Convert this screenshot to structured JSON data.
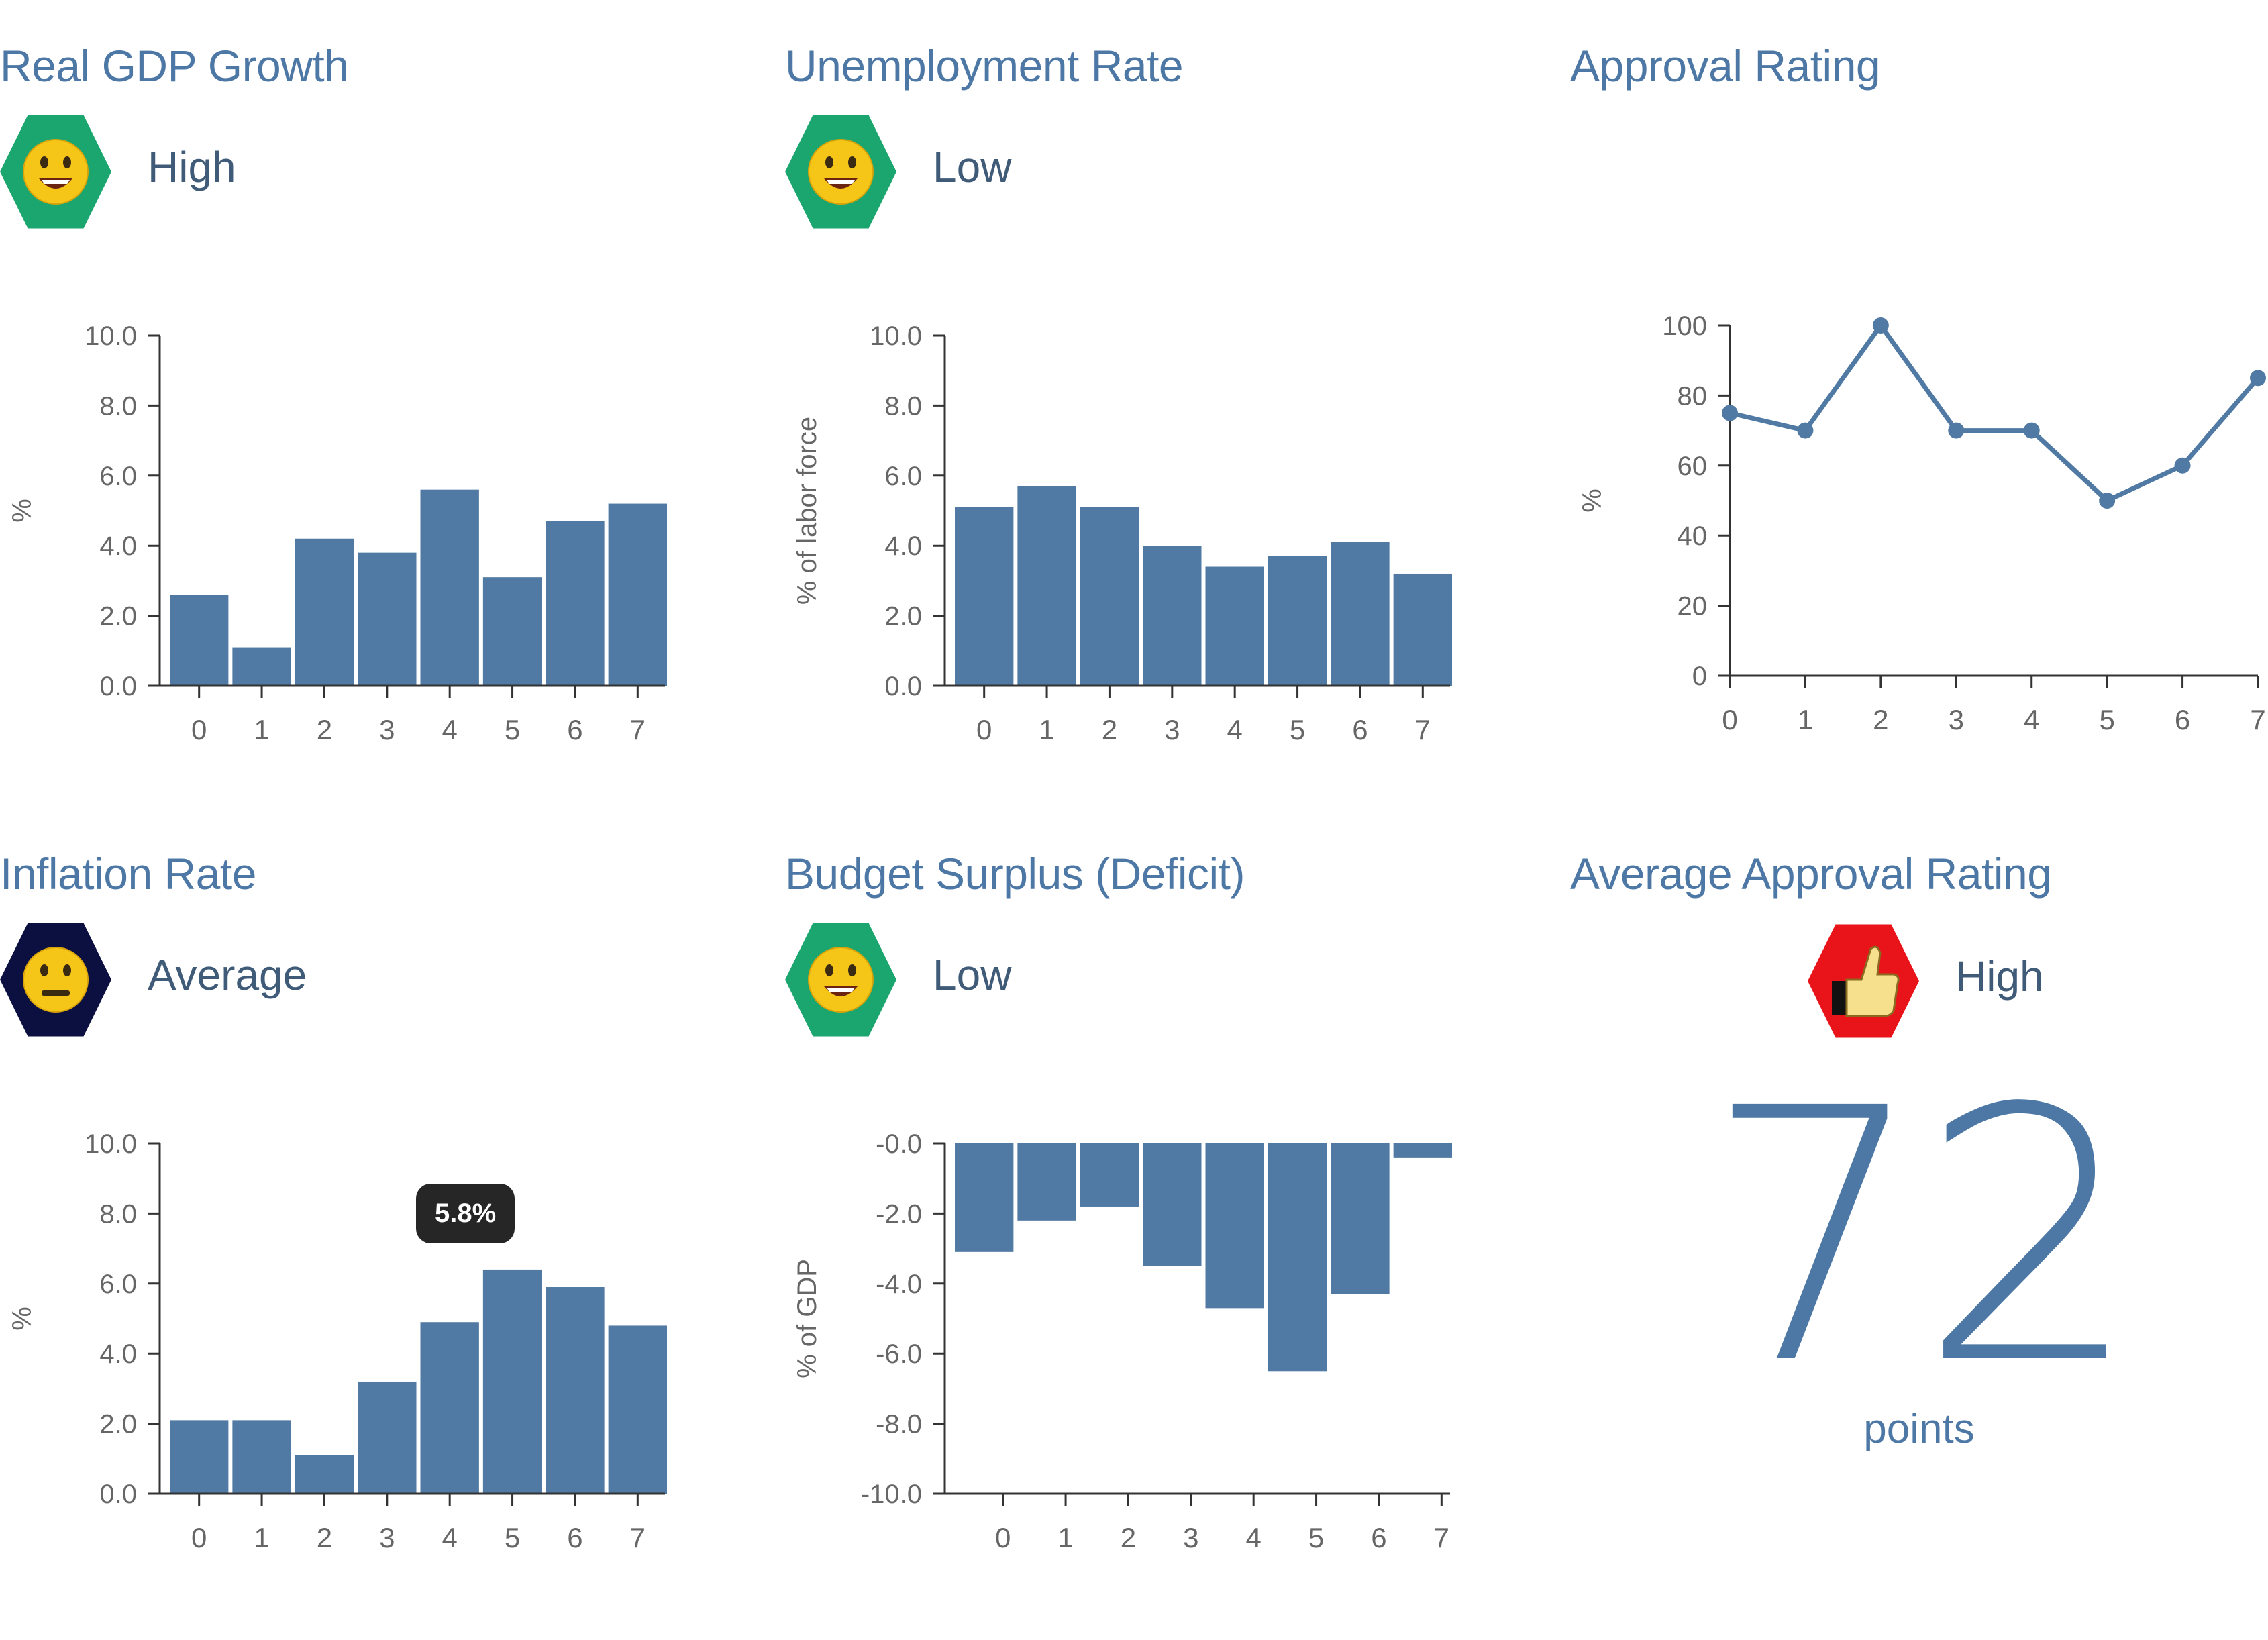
{
  "colors": {
    "accent": "#4d78a5",
    "bar": "#507aa3",
    "axis": "#333333",
    "tick_text": "#666666",
    "happy_hex": "#1aa66e",
    "neutral_hex": "#0c1040",
    "alert_hex": "#e8141a",
    "tooltip_bg": "#262626"
  },
  "panels": [
    {
      "title": "Real GDP Growth",
      "status": "High",
      "icon": "smiley-happy-icon",
      "chart_data": {
        "type": "bar",
        "categories": [
          "0",
          "1",
          "2",
          "3",
          "4",
          "5",
          "6",
          "7"
        ],
        "values": [
          2.6,
          1.1,
          4.2,
          3.8,
          5.6,
          3.1,
          4.7,
          5.2
        ],
        "ylabel": "%",
        "ylim": [
          0,
          10
        ],
        "yticks": [
          "0.0",
          "2.0",
          "4.0",
          "6.0",
          "8.0",
          "10.0"
        ]
      }
    },
    {
      "title": "Unemployment Rate",
      "status": "Low",
      "icon": "smiley-happy-icon",
      "chart_data": {
        "type": "bar",
        "categories": [
          "0",
          "1",
          "2",
          "3",
          "4",
          "5",
          "6",
          "7"
        ],
        "values": [
          5.1,
          5.7,
          5.1,
          4.0,
          3.4,
          3.7,
          4.1,
          3.2
        ],
        "ylabel": "% of labor force",
        "ylim": [
          0,
          10
        ],
        "yticks": [
          "0.0",
          "2.0",
          "4.0",
          "6.0",
          "8.0",
          "10.0"
        ]
      }
    },
    {
      "title": "Approval Rating",
      "chart_data": {
        "type": "line",
        "x": [
          "0",
          "1",
          "2",
          "3",
          "4",
          "5",
          "6",
          "7"
        ],
        "values": [
          75,
          70,
          100,
          70,
          70,
          50,
          60,
          85
        ],
        "ylabel": "%",
        "ylim": [
          0,
          100
        ],
        "yticks": [
          "0",
          "20",
          "40",
          "60",
          "80",
          "100"
        ]
      }
    },
    {
      "title": "Inflation Rate",
      "status": "Average",
      "icon": "smiley-neutral-icon",
      "tooltip": "5.8%",
      "chart_data": {
        "type": "bar",
        "categories": [
          "0",
          "1",
          "2",
          "3",
          "4",
          "5",
          "6",
          "7"
        ],
        "values": [
          2.1,
          2.1,
          1.1,
          3.2,
          4.9,
          6.4,
          5.9,
          4.8
        ],
        "ylabel": "%",
        "ylim": [
          0,
          10
        ],
        "yticks": [
          "0.0",
          "2.0",
          "4.0",
          "6.0",
          "8.0",
          "10.0"
        ]
      }
    },
    {
      "title": "Budget Surplus (Deficit)",
      "status": "Low",
      "icon": "smiley-happy-icon",
      "chart_data": {
        "type": "bar",
        "categories": [
          "0",
          "1",
          "2",
          "3",
          "4",
          "5",
          "6",
          "7"
        ],
        "values": [
          -3.1,
          -2.2,
          -1.8,
          -3.5,
          -4.7,
          -6.5,
          -4.3,
          -0.4
        ],
        "ylabel": "% of GDP",
        "ylim": [
          -10,
          0
        ],
        "yticks": [
          "-10.0",
          "-8.0",
          "-6.0",
          "-4.0",
          "-2.0",
          "-0.0"
        ]
      }
    },
    {
      "title": "Average Approval Rating",
      "status": "High",
      "icon": "thumbs-up-icon",
      "value": "72",
      "unit": "points"
    }
  ]
}
